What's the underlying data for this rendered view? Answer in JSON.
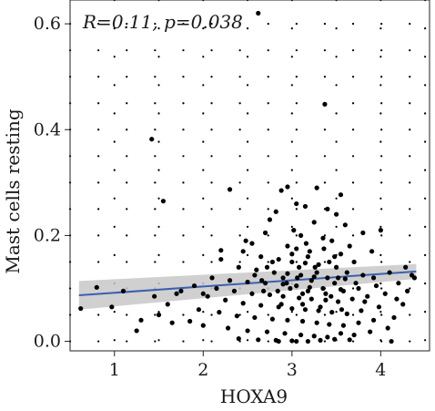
{
  "chart_data": {
    "type": "scatter",
    "annotation": "R=0.11, p=0.038",
    "xlabel": "HOXA9",
    "ylabel": "Mast cells resting",
    "xlim": [
      0.5,
      4.55
    ],
    "ylim": [
      -0.018,
      0.645
    ],
    "xticks": [
      1,
      2,
      3,
      4
    ],
    "yticks": [
      0.0,
      0.2,
      0.4,
      0.6
    ],
    "ytick_labels": [
      "0.0",
      "0.2",
      "0.4",
      "0.6"
    ],
    "grid": "dotted",
    "colors": {
      "points": "#000000",
      "regression_line": "#3b5fb0",
      "confidence_band": "#c8c8c8"
    },
    "regression": {
      "x": [
        0.6,
        4.4
      ],
      "y": [
        0.087,
        0.132
      ]
    },
    "confidence_band": {
      "x": [
        0.6,
        4.4
      ],
      "lower": [
        0.06,
        0.118
      ],
      "upper": [
        0.114,
        0.146
      ]
    },
    "points": [
      [
        2.62,
        0.62
      ],
      [
        3.37,
        0.448
      ],
      [
        1.42,
        0.382
      ],
      [
        1.55,
        0.265
      ],
      [
        2.3,
        0.287
      ],
      [
        2.88,
        0.285
      ],
      [
        2.95,
        0.292
      ],
      [
        3.28,
        0.29
      ],
      [
        3.55,
        0.277
      ],
      [
        3.05,
        0.26
      ],
      [
        3.15,
        0.255
      ],
      [
        3.4,
        0.25
      ],
      [
        3.5,
        0.24
      ],
      [
        2.82,
        0.245
      ],
      [
        2.75,
        0.23
      ],
      [
        3.25,
        0.225
      ],
      [
        3.6,
        0.22
      ],
      [
        3.8,
        0.205
      ],
      [
        4.0,
        0.21
      ],
      [
        2.7,
        0.205
      ],
      [
        3.1,
        0.2
      ],
      [
        3.35,
        0.195
      ],
      [
        3.45,
        0.19
      ],
      [
        2.55,
        0.185
      ],
      [
        2.95,
        0.18
      ],
      [
        3.05,
        0.175
      ],
      [
        3.2,
        0.17
      ],
      [
        3.55,
        0.165
      ],
      [
        3.65,
        0.18
      ],
      [
        3.9,
        0.17
      ],
      [
        2.45,
        0.17
      ],
      [
        2.65,
        0.16
      ],
      [
        2.85,
        0.155
      ],
      [
        3.0,
        0.15
      ],
      [
        3.15,
        0.148
      ],
      [
        3.3,
        0.145
      ],
      [
        3.5,
        0.14
      ],
      [
        3.7,
        0.15
      ],
      [
        2.2,
        0.155
      ],
      [
        2.4,
        0.14
      ],
      [
        2.6,
        0.135
      ],
      [
        2.8,
        0.13
      ],
      [
        2.95,
        0.128
      ],
      [
        3.1,
        0.125
      ],
      [
        3.25,
        0.122
      ],
      [
        3.4,
        0.12
      ],
      [
        3.6,
        0.118
      ],
      [
        3.8,
        0.125
      ],
      [
        4.1,
        0.13
      ],
      [
        4.35,
        0.125
      ],
      [
        2.1,
        0.12
      ],
      [
        2.3,
        0.115
      ],
      [
        2.5,
        0.112
      ],
      [
        2.7,
        0.11
      ],
      [
        2.9,
        0.108
      ],
      [
        3.05,
        0.105
      ],
      [
        3.2,
        0.102
      ],
      [
        3.35,
        0.1
      ],
      [
        3.55,
        0.098
      ],
      [
        3.75,
        0.1
      ],
      [
        3.95,
        0.105
      ],
      [
        4.2,
        0.11
      ],
      [
        1.9,
        0.105
      ],
      [
        2.15,
        0.1
      ],
      [
        2.35,
        0.095
      ],
      [
        2.55,
        0.09
      ],
      [
        2.75,
        0.088
      ],
      [
        2.9,
        0.085
      ],
      [
        3.08,
        0.082
      ],
      [
        3.22,
        0.08
      ],
      [
        3.38,
        0.078
      ],
      [
        3.52,
        0.075
      ],
      [
        3.68,
        0.08
      ],
      [
        3.85,
        0.085
      ],
      [
        4.05,
        0.09
      ],
      [
        4.3,
        0.095
      ],
      [
        1.75,
        0.095
      ],
      [
        2.05,
        0.085
      ],
      [
        2.25,
        0.078
      ],
      [
        2.45,
        0.072
      ],
      [
        2.65,
        0.068
      ],
      [
        2.85,
        0.065
      ],
      [
        3.0,
        0.062
      ],
      [
        3.15,
        0.06
      ],
      [
        3.3,
        0.058
      ],
      [
        3.45,
        0.055
      ],
      [
        3.62,
        0.052
      ],
      [
        3.78,
        0.058
      ],
      [
        3.98,
        0.065
      ],
      [
        4.25,
        0.07
      ],
      [
        1.6,
        0.07
      ],
      [
        1.95,
        0.06
      ],
      [
        2.18,
        0.055
      ],
      [
        2.38,
        0.048
      ],
      [
        2.58,
        0.045
      ],
      [
        2.78,
        0.042
      ],
      [
        2.95,
        0.04
      ],
      [
        3.12,
        0.038
      ],
      [
        3.28,
        0.035
      ],
      [
        3.42,
        0.032
      ],
      [
        3.58,
        0.03
      ],
      [
        3.75,
        0.035
      ],
      [
        3.92,
        0.04
      ],
      [
        4.15,
        0.045
      ],
      [
        1.3,
        0.04
      ],
      [
        1.65,
        0.035
      ],
      [
        2.0,
        0.03
      ],
      [
        2.28,
        0.025
      ],
      [
        2.5,
        0.02
      ],
      [
        2.72,
        0.018
      ],
      [
        2.92,
        0.015
      ],
      [
        3.1,
        0.012
      ],
      [
        3.25,
        0.01
      ],
      [
        3.4,
        0.008
      ],
      [
        3.55,
        0.015
      ],
      [
        3.7,
        0.012
      ],
      [
        3.88,
        0.018
      ],
      [
        4.08,
        0.025
      ],
      [
        1.25,
        0.02
      ],
      [
        2.4,
        0.005
      ],
      [
        2.62,
        0.003
      ],
      [
        2.82,
        0.002
      ],
      [
        3.0,
        0.001
      ],
      [
        3.18,
        0.0
      ],
      [
        3.32,
        0.002
      ],
      [
        3.48,
        0.004
      ],
      [
        3.65,
        0.003
      ],
      [
        4.12,
        0.0
      ],
      [
        2.85,
        0.0
      ],
      [
        3.05,
        0.0
      ],
      [
        0.62,
        0.062
      ],
      [
        0.8,
        0.102
      ],
      [
        0.97,
        0.065
      ],
      [
        1.1,
        0.095
      ],
      [
        1.45,
        0.085
      ],
      [
        1.5,
        0.05
      ],
      [
        1.7,
        0.09
      ],
      [
        1.85,
        0.038
      ],
      [
        2.0,
        0.09
      ],
      [
        2.2,
        0.172
      ],
      [
        2.48,
        0.19
      ],
      [
        3.02,
        0.21
      ],
      [
        2.9,
        0.12
      ],
      [
        3.12,
        0.09
      ],
      [
        3.28,
        0.13
      ],
      [
        3.48,
        0.11
      ],
      [
        3.18,
        0.16
      ],
      [
        2.68,
        0.095
      ],
      [
        2.78,
        0.15
      ],
      [
        3.08,
        0.14
      ],
      [
        3.42,
        0.15
      ],
      [
        3.58,
        0.095
      ],
      [
        2.98,
        0.1
      ],
      [
        3.22,
        0.115
      ],
      [
        3.38,
        0.09
      ],
      [
        2.58,
        0.125
      ],
      [
        2.88,
        0.07
      ],
      [
        3.12,
        0.07
      ],
      [
        3.32,
        0.065
      ],
      [
        3.52,
        0.12
      ],
      [
        2.72,
        0.14
      ],
      [
        3.0,
        0.165
      ],
      [
        3.16,
        0.185
      ],
      [
        3.36,
        0.175
      ],
      [
        3.62,
        0.13
      ],
      [
        3.72,
        0.11
      ],
      [
        3.48,
        0.16
      ],
      [
        3.26,
        0.14
      ],
      [
        3.06,
        0.12
      ],
      [
        2.94,
        0.11
      ],
      [
        2.66,
        0.115
      ],
      [
        2.84,
        0.095
      ],
      [
        3.18,
        0.095
      ],
      [
        3.44,
        0.085
      ],
      [
        3.56,
        0.06
      ],
      [
        3.82,
        0.075
      ],
      [
        4.38,
        0.12
      ],
      [
        4.28,
        0.14
      ],
      [
        4.18,
        0.08
      ],
      [
        3.92,
        0.12
      ]
    ]
  }
}
